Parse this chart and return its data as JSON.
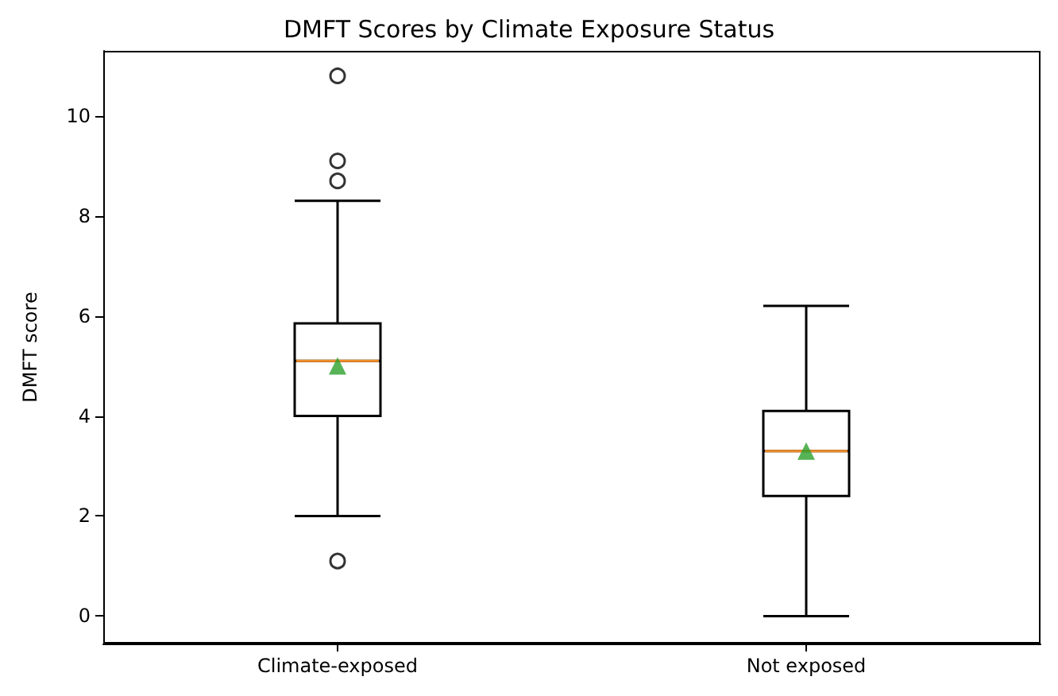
{
  "chart_data": {
    "type": "box",
    "title": "DMFT Scores by Climate Exposure Status",
    "ylabel": "DMFT score",
    "categories": [
      "Climate-exposed",
      "Not exposed"
    ],
    "boxes": [
      {
        "low": 2.0,
        "q1": 4.0,
        "median": 5.1,
        "q3": 5.85,
        "high": 8.3,
        "mean": 5.0,
        "outliers": [
          10.8,
          9.1,
          8.7,
          1.1
        ]
      },
      {
        "low": 0.0,
        "q1": 2.4,
        "median": 3.3,
        "q3": 4.1,
        "high": 6.2,
        "mean": 3.3
      }
    ],
    "ylim": [
      -0.55,
      11.3
    ],
    "yticks": [
      0,
      2,
      4,
      6,
      8,
      10
    ],
    "grid": false,
    "legend": false
  }
}
